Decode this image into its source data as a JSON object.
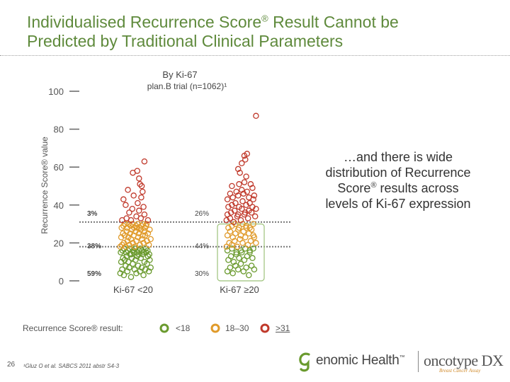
{
  "header": {
    "title_line1_a": "Individualised Recurrence Score",
    "title_line1_reg": "®",
    "title_line1_b": " Result Cannot be",
    "title_line2": "Predicted by Traditional Clinical Parameters"
  },
  "chart_data": {
    "type": "scatter",
    "title_line1": "By Ki-67",
    "title_line2": "plan.B trial (n=1062)¹",
    "ylabel": "Recurrence Score® value",
    "ylim": [
      0,
      100
    ],
    "yticks": [
      0,
      20,
      40,
      60,
      80,
      100
    ],
    "categories": [
      "Ki-67 <20",
      "Ki-67 ≥20"
    ],
    "thresholds": [
      18,
      31
    ],
    "percent_labels": [
      {
        "group": "Ki-67 <20",
        "band": "high",
        "text": "3%"
      },
      {
        "group": "Ki-67 <20",
        "band": "intermediate",
        "text": "38%"
      },
      {
        "group": "Ki-67 <20",
        "band": "low",
        "text": "59%"
      },
      {
        "group": "Ki-67 ≥20",
        "band": "high",
        "text": "26%"
      },
      {
        "group": "Ki-67 ≥20",
        "band": "intermediate",
        "text": "44%"
      },
      {
        "group": "Ki-67 ≥20",
        "band": "low",
        "text": "30%"
      }
    ],
    "series": [
      {
        "name": "<18",
        "color": "#6a9a2e",
        "range": [
          0,
          17
        ]
      },
      {
        "name": "18–30",
        "color": "#e09a2a",
        "range": [
          18,
          30
        ]
      },
      {
        "name": "≥31",
        "color": "#c0392b",
        "range": [
          31,
          100
        ]
      }
    ],
    "groups": [
      {
        "name": "Ki-67 <20",
        "points": [
          [
            -0.32,
            4
          ],
          [
            -0.28,
            6
          ],
          [
            -0.24,
            3
          ],
          [
            -0.2,
            8
          ],
          [
            -0.16,
            5
          ],
          [
            -0.12,
            7
          ],
          [
            -0.08,
            2
          ],
          [
            -0.04,
            9
          ],
          [
            0.0,
            6
          ],
          [
            0.04,
            4
          ],
          [
            0.08,
            8
          ],
          [
            0.12,
            5
          ],
          [
            0.16,
            7
          ],
          [
            0.2,
            3
          ],
          [
            0.24,
            6
          ],
          [
            0.28,
            9
          ],
          [
            0.32,
            5
          ],
          [
            0.36,
            7
          ],
          [
            -0.3,
            10
          ],
          [
            -0.26,
            12
          ],
          [
            -0.22,
            11
          ],
          [
            -0.18,
            13
          ],
          [
            -0.14,
            10
          ],
          [
            -0.1,
            14
          ],
          [
            -0.06,
            12
          ],
          [
            -0.02,
            15
          ],
          [
            0.02,
            11
          ],
          [
            0.06,
            13
          ],
          [
            0.1,
            16
          ],
          [
            0.14,
            12
          ],
          [
            0.18,
            14
          ],
          [
            0.22,
            10
          ],
          [
            0.26,
            15
          ],
          [
            0.3,
            13
          ],
          [
            0.34,
            11
          ],
          [
            -0.31,
            15
          ],
          [
            -0.27,
            16
          ],
          [
            -0.23,
            17
          ],
          [
            -0.19,
            15
          ],
          [
            -0.15,
            16
          ],
          [
            -0.11,
            17
          ],
          [
            -0.07,
            14
          ],
          [
            -0.03,
            16
          ],
          [
            0.01,
            17
          ],
          [
            0.05,
            15
          ],
          [
            0.09,
            14
          ],
          [
            0.13,
            17
          ],
          [
            0.17,
            16
          ],
          [
            0.21,
            15
          ],
          [
            0.25,
            17
          ],
          [
            0.29,
            16
          ],
          [
            0.33,
            14
          ],
          [
            -0.32,
            18
          ],
          [
            -0.28,
            19
          ],
          [
            -0.24,
            20
          ],
          [
            -0.2,
            18
          ],
          [
            -0.16,
            21
          ],
          [
            -0.12,
            19
          ],
          [
            -0.08,
            22
          ],
          [
            -0.04,
            20
          ],
          [
            0.0,
            18
          ],
          [
            0.04,
            21
          ],
          [
            0.08,
            23
          ],
          [
            0.12,
            19
          ],
          [
            0.16,
            22
          ],
          [
            0.2,
            20
          ],
          [
            0.24,
            24
          ],
          [
            0.28,
            21
          ],
          [
            0.32,
            19
          ],
          [
            0.36,
            22
          ],
          [
            -0.3,
            23
          ],
          [
            -0.26,
            25
          ],
          [
            -0.22,
            24
          ],
          [
            -0.18,
            26
          ],
          [
            -0.14,
            23
          ],
          [
            -0.1,
            25
          ],
          [
            -0.06,
            27
          ],
          [
            -0.02,
            24
          ],
          [
            0.02,
            26
          ],
          [
            0.06,
            28
          ],
          [
            0.1,
            25
          ],
          [
            0.14,
            27
          ],
          [
            0.18,
            24
          ],
          [
            0.22,
            26
          ],
          [
            0.26,
            29
          ],
          [
            0.3,
            25
          ],
          [
            0.34,
            27
          ],
          [
            -0.29,
            28
          ],
          [
            -0.25,
            29
          ],
          [
            -0.21,
            30
          ],
          [
            -0.17,
            28
          ],
          [
            -0.13,
            30
          ],
          [
            -0.09,
            29
          ],
          [
            -0.05,
            30
          ],
          [
            -0.01,
            28
          ],
          [
            0.03,
            29
          ],
          [
            0.07,
            30
          ],
          [
            0.11,
            28
          ],
          [
            0.15,
            29
          ],
          [
            0.19,
            30
          ],
          [
            0.23,
            28
          ],
          [
            0.27,
            30
          ],
          [
            -0.28,
            32
          ],
          [
            -0.18,
            33
          ],
          [
            -0.08,
            32
          ],
          [
            0.04,
            34
          ],
          [
            0.14,
            33
          ],
          [
            0.22,
            35
          ],
          [
            0.3,
            32
          ],
          [
            -0.12,
            36
          ],
          [
            0.1,
            37
          ],
          [
            -0.05,
            38
          ],
          [
            0.2,
            39
          ],
          [
            -0.2,
            40
          ],
          [
            0.07,
            41
          ],
          [
            -0.25,
            43
          ],
          [
            0.15,
            44
          ],
          [
            -0.02,
            45
          ],
          [
            0.18,
            47
          ],
          [
            -0.15,
            48
          ],
          [
            0.16,
            50
          ],
          [
            0.12,
            51
          ],
          [
            0.1,
            54
          ],
          [
            -0.04,
            57
          ],
          [
            0.06,
            58
          ],
          [
            0.22,
            63
          ]
        ]
      },
      {
        "name": "Ki-67 ≥20",
        "points": [
          [
            -0.3,
            5
          ],
          [
            -0.24,
            7
          ],
          [
            -0.18,
            4
          ],
          [
            -0.12,
            8
          ],
          [
            -0.06,
            6
          ],
          [
            0.0,
            9
          ],
          [
            0.06,
            5
          ],
          [
            0.12,
            7
          ],
          [
            0.18,
            3
          ],
          [
            0.24,
            8
          ],
          [
            0.3,
            6
          ],
          [
            -0.28,
            11
          ],
          [
            -0.22,
            13
          ],
          [
            -0.16,
            10
          ],
          [
            -0.1,
            14
          ],
          [
            -0.04,
            12
          ],
          [
            0.02,
            15
          ],
          [
            0.08,
            11
          ],
          [
            0.14,
            13
          ],
          [
            0.2,
            16
          ],
          [
            0.26,
            12
          ],
          [
            -0.3,
            16
          ],
          [
            -0.2,
            17
          ],
          [
            -0.1,
            15
          ],
          [
            0.0,
            16
          ],
          [
            0.1,
            17
          ],
          [
            0.2,
            15
          ],
          [
            0.28,
            17
          ],
          [
            -0.32,
            18
          ],
          [
            -0.26,
            20
          ],
          [
            -0.2,
            19
          ],
          [
            -0.14,
            21
          ],
          [
            -0.08,
            18
          ],
          [
            -0.02,
            22
          ],
          [
            0.04,
            20
          ],
          [
            0.1,
            23
          ],
          [
            0.16,
            19
          ],
          [
            0.22,
            21
          ],
          [
            0.28,
            24
          ],
          [
            0.34,
            20
          ],
          [
            -0.3,
            24
          ],
          [
            -0.24,
            26
          ],
          [
            -0.18,
            23
          ],
          [
            -0.12,
            25
          ],
          [
            -0.06,
            27
          ],
          [
            0.0,
            24
          ],
          [
            0.06,
            26
          ],
          [
            0.12,
            28
          ],
          [
            0.18,
            25
          ],
          [
            0.24,
            27
          ],
          [
            0.3,
            23
          ],
          [
            -0.28,
            28
          ],
          [
            -0.2,
            29
          ],
          [
            -0.12,
            30
          ],
          [
            -0.04,
            28
          ],
          [
            0.04,
            30
          ],
          [
            0.12,
            29
          ],
          [
            0.2,
            28
          ],
          [
            0.28,
            30
          ],
          [
            -0.32,
            32
          ],
          [
            -0.24,
            33
          ],
          [
            -0.16,
            31
          ],
          [
            -0.08,
            34
          ],
          [
            0.0,
            32
          ],
          [
            0.08,
            35
          ],
          [
            0.16,
            33
          ],
          [
            0.24,
            36
          ],
          [
            0.32,
            34
          ],
          [
            -0.3,
            35
          ],
          [
            -0.22,
            36
          ],
          [
            -0.14,
            37
          ],
          [
            -0.06,
            35
          ],
          [
            0.02,
            38
          ],
          [
            0.1,
            36
          ],
          [
            0.18,
            37
          ],
          [
            0.26,
            39
          ],
          [
            0.34,
            38
          ],
          [
            -0.28,
            39
          ],
          [
            -0.2,
            40
          ],
          [
            -0.12,
            41
          ],
          [
            -0.04,
            39
          ],
          [
            0.04,
            42
          ],
          [
            0.12,
            40
          ],
          [
            0.2,
            41
          ],
          [
            0.28,
            43
          ],
          [
            -0.3,
            43
          ],
          [
            -0.18,
            44
          ],
          [
            -0.06,
            45
          ],
          [
            0.06,
            46
          ],
          [
            0.18,
            44
          ],
          [
            0.3,
            45
          ],
          [
            -0.24,
            46
          ],
          [
            -0.1,
            47
          ],
          [
            0.02,
            48
          ],
          [
            0.14,
            47
          ],
          [
            0.26,
            49
          ],
          [
            -0.2,
            50
          ],
          [
            -0.04,
            51
          ],
          [
            0.08,
            52
          ],
          [
            0.22,
            51
          ],
          [
            0.12,
            55
          ],
          [
            -0.02,
            57
          ],
          [
            -0.06,
            59
          ],
          [
            0.02,
            62
          ],
          [
            0.1,
            64
          ],
          [
            0.08,
            66
          ],
          [
            0.14,
            67
          ],
          [
            0.34,
            87
          ]
        ]
      }
    ]
  },
  "callout": {
    "line1": "…and there is wide",
    "line2": "distribution of Recurrence",
    "line3a": "Score",
    "line3reg": "®",
    "line3b": "  results across",
    "line4": "levels of Ki-67 expression"
  },
  "legend": {
    "title": "Recurrence Score® result:",
    "items": [
      {
        "label": "<18",
        "color": "#6a9a2e"
      },
      {
        "label": "18–30",
        "color": "#e09a2a"
      },
      {
        "label": ">31",
        "color": "#c0392b"
      }
    ]
  },
  "footer": {
    "page_number": "26",
    "footnote": "¹Gluz O et al. SABCS 2011 abstr S4-3",
    "logo_company": "enomic Health",
    "logo_product": "oncotype DX",
    "logo_tagline": "Breast Cancer Assay",
    "tm_mark": "™"
  }
}
